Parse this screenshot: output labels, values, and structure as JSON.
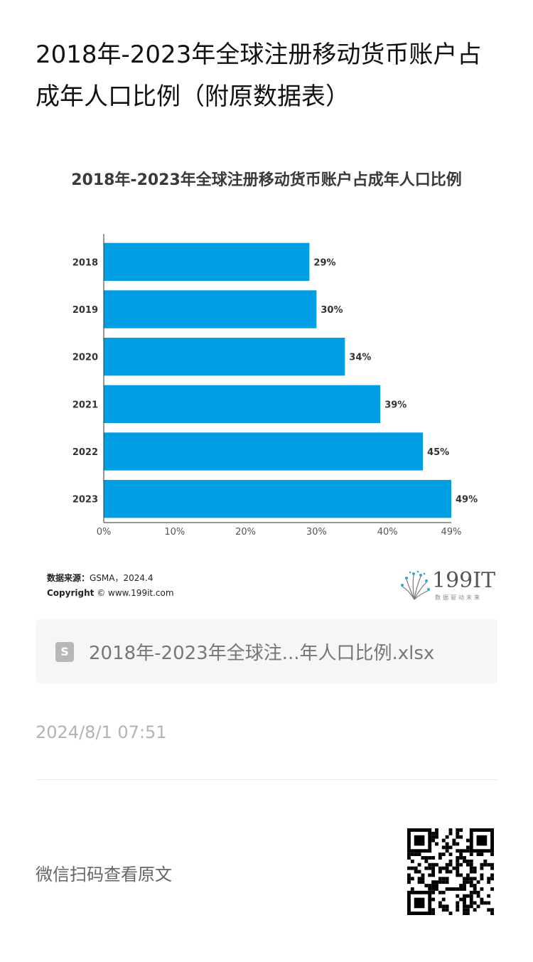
{
  "article": {
    "title": "2018年-2023年全球注册移动货币账户占成年人口比例（附原数据表）"
  },
  "chart_data": {
    "type": "bar",
    "orientation": "horizontal",
    "title": "2018年-2023年全球注册移动货币账户占成年人口比例",
    "categories": [
      "2018",
      "2019",
      "2020",
      "2021",
      "2022",
      "2023"
    ],
    "values": [
      29,
      30,
      34,
      39,
      45,
      49
    ],
    "data_labels": [
      "29%",
      "30%",
      "34%",
      "39%",
      "45%",
      "49%"
    ],
    "xlim": [
      0,
      49
    ],
    "x_ticks": [
      "0%",
      "10%",
      "20%",
      "30%",
      "40%",
      "49%"
    ],
    "x_tick_values": [
      0,
      10,
      20,
      30,
      40,
      49
    ],
    "bar_color": "#009fe3",
    "grid": false,
    "legend": "none"
  },
  "source": {
    "label": "数据来源：",
    "text": "GSMA，2024.4",
    "copyright_label": "Copyright",
    "copyright_text": "© www.199it.com"
  },
  "brand": {
    "logo_text": "199IT",
    "sub_text": "数据驱动未来",
    "logo_icon": "dandelion-logo-icon"
  },
  "attachment": {
    "icon": "spreadsheet-file-icon",
    "icon_glyph": "S",
    "file_name": "2018年-2023年全球注...年人口比例.xlsx"
  },
  "meta": {
    "date": "2024/8/1 07:51"
  },
  "footer": {
    "wechat_text": "微信扫码查看原文",
    "qr_icon": "qr-code-icon"
  }
}
